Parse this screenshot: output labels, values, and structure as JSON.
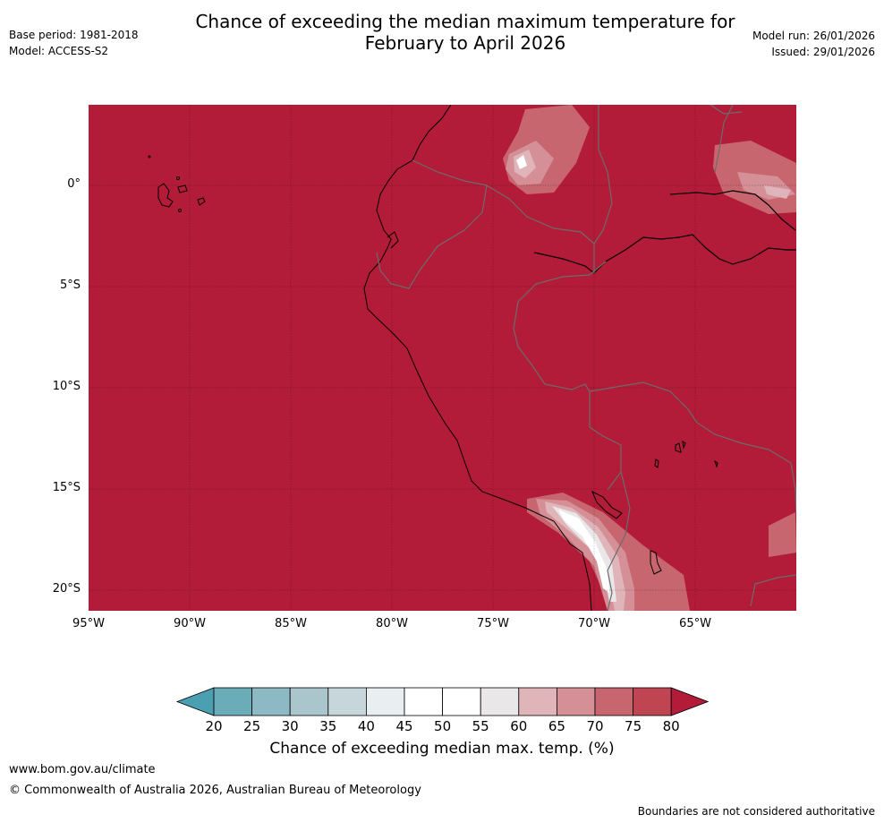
{
  "title_line1": "Chance of exceeding the median maximum temperature for",
  "title_line2": "February to April 2026",
  "meta_left": {
    "base_period": "Base period: 1981-2018",
    "model": "Model: ACCESS-S2"
  },
  "meta_right": {
    "model_run": "Model run: 26/01/2026",
    "issued": "Issued: 29/01/2026"
  },
  "lat_labels": [
    "0°",
    "5°S",
    "10°S",
    "15°S",
    "20°S"
  ],
  "lon_labels": [
    "95°W",
    "90°W",
    "85°W",
    "80°W",
    "75°W",
    "70°W",
    "65°W"
  ],
  "colorbar": {
    "ticks": [
      "20",
      "25",
      "30",
      "35",
      "40",
      "45",
      "50",
      "55",
      "60",
      "65",
      "70",
      "75",
      "80"
    ],
    "title": "Chance of exceeding median max. temp. (%)",
    "colors": [
      "#4aa0b0",
      "#6aacb8",
      "#8cb9c3",
      "#aac6cc",
      "#c7d6da",
      "#e9eef0",
      "#ffffff",
      "#ffffff",
      "#e9e7e8",
      "#dfb5ba",
      "#d48f97",
      "#c86670",
      "#bf4553",
      "#b31c38"
    ]
  },
  "map": {
    "fill_color": "#b31c38",
    "lon_range": [
      -95,
      -60
    ],
    "lat_range": [
      -21,
      4
    ]
  },
  "footer": {
    "url": "www.bom.gov.au/climate",
    "copyright": "© Commonwealth of Australia 2026, Australian Bureau of Meteorology",
    "note": "Boundaries are not considered authoritative"
  }
}
